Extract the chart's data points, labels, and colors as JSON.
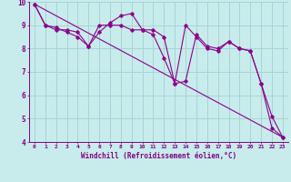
{
  "line1_x": [
    0,
    1,
    2,
    3,
    4,
    5,
    6,
    7,
    8,
    9,
    10,
    11,
    12,
    13,
    14,
    15,
    16,
    17,
    18,
    19,
    20,
    21,
    22,
    23
  ],
  "line1_y": [
    9.9,
    9.0,
    8.8,
    8.8,
    8.7,
    8.1,
    9.0,
    9.0,
    9.0,
    8.8,
    8.8,
    8.6,
    7.6,
    6.5,
    9.0,
    8.5,
    8.0,
    7.9,
    8.3,
    8.0,
    7.9,
    6.5,
    5.1,
    4.2
  ],
  "line2_x": [
    0,
    1,
    2,
    3,
    4,
    5,
    6,
    7,
    8,
    9,
    10,
    11,
    12,
    13,
    14,
    15,
    16,
    17,
    18,
    19,
    20,
    21,
    22,
    23
  ],
  "line2_y": [
    9.9,
    9.0,
    8.9,
    8.7,
    8.5,
    8.1,
    8.7,
    9.1,
    9.4,
    9.5,
    8.8,
    8.8,
    8.5,
    6.5,
    6.6,
    8.6,
    8.1,
    8.0,
    8.3,
    8.0,
    7.9,
    6.5,
    4.6,
    4.2
  ],
  "line3_x": [
    0,
    23
  ],
  "line3_y": [
    9.9,
    4.2
  ],
  "color": "#8B008B",
  "bg_color": "#C8ECEC",
  "grid_color": "#A8D4D4",
  "xlabel": "Windchill (Refroidissement éolien,°C)",
  "xlim": [
    -0.5,
    23.5
  ],
  "ylim": [
    4,
    10
  ],
  "xticks": [
    0,
    1,
    2,
    3,
    4,
    5,
    6,
    7,
    8,
    9,
    10,
    11,
    12,
    13,
    14,
    15,
    16,
    17,
    18,
    19,
    20,
    21,
    22,
    23
  ],
  "yticks": [
    4,
    5,
    6,
    7,
    8,
    9,
    10
  ],
  "font_color": "#800080"
}
